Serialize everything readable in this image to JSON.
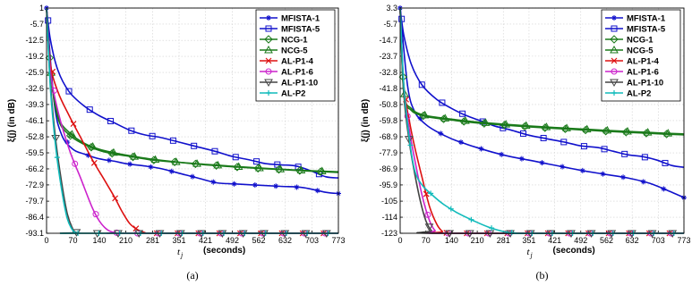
{
  "chart_data": [
    {
      "type": "line",
      "panel_label": "(a)",
      "xlabel_var": "t",
      "xlabel_sub": "j",
      "xlabel_unit": "(seconds)",
      "ylabel": "ξ(j) (in dB)",
      "xlim": [
        0,
        773
      ],
      "ylim": [
        -93.1,
        1
      ],
      "xticks": [
        "0",
        "70",
        "140",
        "210",
        "281",
        "351",
        "421",
        "492",
        "562",
        "632",
        "703",
        "773"
      ],
      "yticks": [
        "1",
        "-5.7",
        "-12.5",
        "-19.2",
        "-25.9",
        "-32.6",
        "-39.3",
        "-46.1",
        "-52.8",
        "-59.5",
        "-66.2",
        "-72.9",
        "-79.7",
        "-86.4",
        "-93.1"
      ],
      "ytick_values": [
        1,
        -5.7,
        -12.5,
        -19.2,
        -25.9,
        -32.6,
        -39.3,
        -46.1,
        -52.8,
        -59.5,
        -66.2,
        -72.9,
        -79.7,
        -86.4,
        -93.1
      ],
      "grid": true,
      "legend_position": "top-right",
      "series": [
        {
          "name": "MFISTA-1",
          "color": "#1111cc",
          "marker": "star",
          "dash": "solid",
          "x": [
            0,
            20,
            40,
            70,
            100,
            140,
            180,
            210,
            260,
            300,
            351,
            400,
            450,
            500,
            560,
            620,
            680,
            740,
            773
          ],
          "y": [
            1,
            -38,
            -52,
            -58,
            -60,
            -62,
            -63,
            -64,
            -65,
            -66,
            -68,
            -70,
            -72,
            -72.5,
            -73,
            -73.5,
            -74,
            -76,
            -76.5
          ]
        },
        {
          "name": "MFISTA-5",
          "color": "#1111cc",
          "marker": "square",
          "dash": "solid",
          "x": [
            0,
            10,
            30,
            60,
            100,
            140,
            180,
            220,
            260,
            300,
            351,
            400,
            450,
            492,
            540,
            580,
            620,
            660,
            700,
            740,
            773
          ],
          "y": [
            1,
            -12,
            -25,
            -34,
            -40,
            -44,
            -47,
            -50,
            -52,
            -53,
            -55,
            -57,
            -59,
            -61,
            -62.5,
            -64,
            -64.5,
            -65,
            -67,
            -69.5,
            -70
          ]
        },
        {
          "name": "NCG-1",
          "color": "#1a7a1a",
          "marker": "diamond",
          "dash": "solid",
          "x": [
            0,
            10,
            30,
            60,
            100,
            140,
            180,
            220,
            281,
            351,
            421,
            492,
            562,
            632,
            703,
            773
          ],
          "y": [
            1,
            -25,
            -45,
            -52,
            -56,
            -58.5,
            -60,
            -61,
            -62.5,
            -63.5,
            -64.5,
            -65.3,
            -66,
            -66.6,
            -67.2,
            -67.7
          ]
        },
        {
          "name": "NCG-5",
          "color": "#1a7a1a",
          "marker": "triangle",
          "dash": "solid",
          "x": [
            0,
            10,
            30,
            60,
            100,
            140,
            180,
            220,
            281,
            351,
            421,
            492,
            562,
            632,
            703,
            773
          ],
          "y": [
            1,
            -24,
            -44,
            -51,
            -55.5,
            -58,
            -59.5,
            -60.7,
            -62.2,
            -63.4,
            -64.3,
            -65.1,
            -65.8,
            -66.4,
            -67,
            -67.4
          ]
        },
        {
          "name": "AL-P1-4",
          "color": "#dd1111",
          "marker": "x",
          "dash": "solid",
          "x": [
            0,
            10,
            30,
            60,
            90,
            120,
            150,
            180,
            200,
            220,
            240,
            260,
            290,
            773
          ],
          "y": [
            1,
            -22,
            -34,
            -44,
            -53,
            -62,
            -70,
            -78,
            -84,
            -89,
            -91.5,
            -92.8,
            -93.1,
            -93.1
          ]
        },
        {
          "name": "AL-P1-6",
          "color": "#cc22cc",
          "marker": "circle",
          "dash": "solid",
          "x": [
            0,
            10,
            30,
            60,
            90,
            120,
            140,
            160,
            180,
            210,
            773
          ],
          "y": [
            1,
            -25,
            -42,
            -58,
            -70,
            -82,
            -88,
            -91.5,
            -92.8,
            -93.1,
            -93.1
          ]
        },
        {
          "name": "AL-P1-10",
          "color": "#444444",
          "marker": "triangle-down",
          "dash": "solid",
          "x": [
            0,
            10,
            25,
            40,
            55,
            70,
            80,
            90,
            773
          ],
          "y": [
            1,
            -30,
            -55,
            -72,
            -85,
            -91.5,
            -92.8,
            -93.1,
            -93.1
          ]
        },
        {
          "name": "AL-P2",
          "color": "#11bbbb",
          "marker": "plus",
          "dash": "solid",
          "x": [
            0,
            10,
            25,
            40,
            55,
            70,
            80,
            90,
            773
          ],
          "y": [
            1,
            -32,
            -58,
            -75,
            -87,
            -92,
            -93,
            -93.1,
            -93.1
          ]
        }
      ]
    },
    {
      "type": "line",
      "panel_label": "(b)",
      "xlabel_var": "t",
      "xlabel_sub": "j",
      "xlabel_unit": "(seconds)",
      "ylabel": "ξ(j) (in dB)",
      "xlim": [
        0,
        773
      ],
      "ylim": [
        -123,
        3.3
      ],
      "xticks": [
        "0",
        "70",
        "140",
        "210",
        "281",
        "351",
        "421",
        "492",
        "562",
        "632",
        "703",
        "773"
      ],
      "yticks": [
        "3.3",
        "-5.7",
        "-14.7",
        "-23.7",
        "-32.8",
        "-41.8",
        "-50.8",
        "-59.8",
        "-68.9",
        "-77.9",
        "-86.9",
        "-95.9",
        "-105",
        "-114",
        "-123"
      ],
      "ytick_values": [
        3.3,
        -5.7,
        -14.7,
        -23.7,
        -32.8,
        -41.8,
        -50.8,
        -59.8,
        -68.9,
        -77.9,
        -86.9,
        -95.9,
        -105,
        -114,
        -123
      ],
      "grid": true,
      "legend_position": "top-right",
      "series": [
        {
          "name": "MFISTA-1",
          "color": "#1111cc",
          "marker": "star",
          "dash": "solid",
          "x": [
            0,
            20,
            40,
            70,
            100,
            140,
            180,
            210,
            260,
            300,
            351,
            400,
            450,
            500,
            560,
            620,
            680,
            740,
            773
          ],
          "y": [
            3.3,
            -40,
            -55,
            -62,
            -66,
            -70,
            -73,
            -75,
            -78,
            -80,
            -82,
            -84,
            -86,
            -88,
            -90,
            -92,
            -95,
            -100,
            -103
          ]
        },
        {
          "name": "MFISTA-5",
          "color": "#1111cc",
          "marker": "square",
          "dash": "solid",
          "x": [
            0,
            10,
            30,
            60,
            100,
            140,
            180,
            220,
            260,
            300,
            351,
            400,
            450,
            492,
            540,
            580,
            620,
            660,
            700,
            740,
            773
          ],
          "y": [
            3.3,
            -12,
            -28,
            -40,
            -48,
            -53,
            -57,
            -60,
            -63,
            -65,
            -68,
            -70,
            -72,
            -74,
            -75,
            -77,
            -79,
            -80,
            -82,
            -85,
            -86
          ]
        },
        {
          "name": "NCG-1",
          "color": "#1a7a1a",
          "marker": "diamond",
          "dash": "solid",
          "x": [
            0,
            10,
            30,
            60,
            100,
            140,
            180,
            220,
            281,
            351,
            421,
            492,
            562,
            632,
            703,
            773
          ],
          "y": [
            3.3,
            -45,
            -54,
            -57,
            -58.5,
            -59.5,
            -60.5,
            -61.3,
            -62.3,
            -63.3,
            -64.2,
            -65,
            -65.8,
            -66.5,
            -67.2,
            -67.8
          ]
        },
        {
          "name": "NCG-5",
          "color": "#1a7a1a",
          "marker": "triangle",
          "dash": "solid",
          "x": [
            0,
            10,
            30,
            60,
            100,
            140,
            180,
            220,
            281,
            351,
            421,
            492,
            562,
            632,
            703,
            773
          ],
          "y": [
            3.3,
            -44,
            -53,
            -56.5,
            -58,
            -59,
            -60,
            -60.8,
            -61.8,
            -62.8,
            -63.7,
            -64.5,
            -65.3,
            -66,
            -66.7,
            -67.3
          ]
        },
        {
          "name": "AL-P1-4",
          "color": "#dd1111",
          "marker": "x",
          "dash": "solid",
          "x": [
            0,
            10,
            25,
            40,
            60,
            80,
            100,
            115,
            130,
            773
          ],
          "y": [
            3.3,
            -40,
            -60,
            -75,
            -92,
            -108,
            -118,
            -122,
            -123,
            -123
          ]
        },
        {
          "name": "AL-P1-6",
          "color": "#cc22cc",
          "marker": "circle",
          "dash": "solid",
          "x": [
            0,
            10,
            25,
            40,
            60,
            80,
            95,
            110,
            773
          ],
          "y": [
            3.3,
            -42,
            -65,
            -82,
            -102,
            -116,
            -121.5,
            -123,
            -123
          ]
        },
        {
          "name": "AL-P1-10",
          "color": "#444444",
          "marker": "triangle-down",
          "dash": "solid",
          "x": [
            0,
            10,
            25,
            40,
            55,
            70,
            85,
            100,
            773
          ],
          "y": [
            3.3,
            -45,
            -72,
            -90,
            -105,
            -116,
            -121.5,
            -123,
            -123
          ]
        },
        {
          "name": "AL-P2",
          "color": "#11bbbb",
          "marker": "plus",
          "dash": "solid",
          "x": [
            0,
            10,
            25,
            40,
            60,
            90,
            120,
            160,
            200,
            240,
            281,
            320,
            351,
            773
          ],
          "y": [
            3.3,
            -40,
            -70,
            -88,
            -96,
            -102,
            -107,
            -112,
            -116,
            -119.5,
            -122,
            -123,
            -123,
            -123
          ]
        }
      ]
    }
  ]
}
